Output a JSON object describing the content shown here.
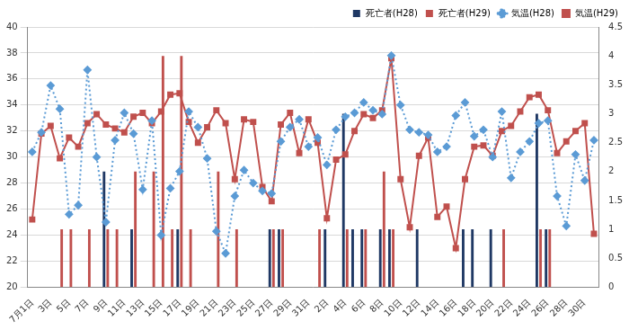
{
  "chart_data": {
    "type": "bar",
    "categories": [
      "7月1日",
      null,
      "3日",
      null,
      "5日",
      null,
      "7日",
      null,
      "9日",
      null,
      "11日",
      null,
      "13日",
      null,
      "15日",
      null,
      "17日",
      null,
      "19日",
      null,
      "21日",
      null,
      "23日",
      null,
      "25日",
      null,
      "27日",
      null,
      "29日",
      null,
      "31日",
      null,
      "2日",
      null,
      "4日",
      null,
      "6日",
      null,
      "8日",
      null,
      "10日",
      null,
      "12日",
      null,
      "14日",
      null,
      "16日",
      null,
      "18日",
      null,
      "20日",
      null,
      "22日",
      null,
      "24日",
      null,
      "26日",
      null,
      "28日",
      null,
      "30日",
      null
    ],
    "series": [
      {
        "name": "死亡者(H28)",
        "type": "bar",
        "axis": "y2",
        "color": "#1f3864",
        "values": [
          0,
          0,
          0,
          0,
          0,
          0,
          0,
          0,
          2,
          0,
          0,
          1,
          0,
          0,
          0,
          0,
          1,
          0,
          0,
          0,
          0,
          0,
          0,
          0,
          0,
          0,
          1,
          1,
          0,
          0,
          0,
          0,
          1,
          0,
          3,
          1,
          1,
          0,
          1,
          1,
          0,
          0,
          1,
          0,
          0,
          0,
          0,
          1,
          1,
          0,
          1,
          0,
          0,
          0,
          0,
          3,
          1,
          0,
          0,
          0,
          0,
          0
        ]
      },
      {
        "name": "死亡者(H29)",
        "type": "bar",
        "axis": "y2",
        "color": "#c0504d",
        "values": [
          0,
          0,
          0,
          1,
          1,
          0,
          1,
          0,
          1,
          1,
          0,
          2,
          0,
          2,
          4,
          1,
          4,
          1,
          0,
          0,
          2,
          0,
          1,
          0,
          0,
          0,
          1,
          1,
          0,
          0,
          0,
          1,
          0,
          0,
          1,
          0,
          1,
          0,
          2,
          1,
          0,
          0,
          0,
          0,
          0,
          0,
          0,
          0,
          0,
          0,
          0,
          1,
          0,
          0,
          0,
          1,
          1,
          0,
          0,
          0,
          0,
          0
        ]
      },
      {
        "name": "気温(H28)",
        "type": "line",
        "color": "#5b9bd5",
        "marker": "diamond",
        "line_style": "dotted",
        "values": [
          30.4,
          31.9,
          35.5,
          33.7,
          25.6,
          26.3,
          36.7,
          30.0,
          25.0,
          31.3,
          33.4,
          31.8,
          27.5,
          32.8,
          24.0,
          27.6,
          28.9,
          33.5,
          32.3,
          29.9,
          24.3,
          22.6,
          27.0,
          29.0,
          28.0,
          27.4,
          27.2,
          31.2,
          32.3,
          32.9,
          30.8,
          31.5,
          29.4,
          32.1,
          33.1,
          33.4,
          34.2,
          33.6,
          33.3,
          37.8,
          34.0,
          32.1,
          31.9,
          31.7,
          30.4,
          30.8,
          33.2,
          34.2,
          31.6,
          32.1,
          30.0,
          33.5,
          28.4,
          30.4,
          31.2,
          32.6,
          32.8,
          27.0,
          24.7,
          30.2,
          28.2,
          31.3
        ]
      },
      {
        "name": "気温(H29)",
        "type": "line",
        "color": "#c0504d",
        "marker": "square",
        "line_style": "solid",
        "values": [
          25.2,
          31.8,
          32.4,
          29.9,
          31.5,
          30.8,
          32.6,
          33.3,
          32.5,
          32.2,
          31.9,
          33.1,
          33.4,
          32.6,
          33.5,
          34.8,
          34.9,
          32.7,
          31.1,
          32.3,
          33.6,
          32.6,
          28.3,
          32.9,
          32.7,
          27.7,
          26.6,
          32.5,
          33.4,
          30.3,
          32.9,
          31.1,
          25.3,
          29.8,
          30.2,
          32.0,
          33.3,
          33.0,
          33.6,
          37.6,
          28.3,
          24.6,
          30.1,
          31.5,
          25.4,
          26.2,
          23.0,
          28.3,
          30.8,
          30.9,
          30.1,
          32.0,
          32.4,
          33.5,
          34.6,
          34.8,
          33.6,
          30.3,
          31.2,
          32.0,
          32.6,
          24.1
        ]
      }
    ],
    "ylim": [
      20,
      40
    ],
    "yticks": [
      20,
      22,
      24,
      26,
      28,
      30,
      32,
      34,
      36,
      38,
      40
    ],
    "y2lim": [
      0,
      4.5
    ],
    "y2ticks": [
      0,
      0.5,
      1,
      1.5,
      2,
      2.5,
      3,
      3.5,
      4,
      4.5
    ],
    "grid": true,
    "legend": "top-right"
  }
}
